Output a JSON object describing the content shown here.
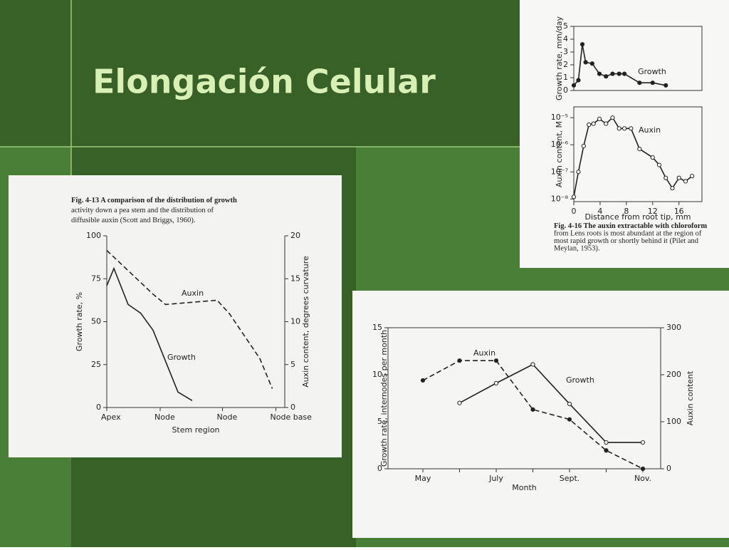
{
  "slide": {
    "title": "Elongación Celular"
  },
  "chart_data": [
    {
      "type": "line",
      "caption": [
        "Fig. 4-13  A comparison of the distribution of growth",
        "activity down a pea stem and the distribution of",
        "diffusible auxin (Scott and Briggs, 1960)."
      ],
      "xlabel": "Stem region",
      "ylabel": "Growth rate, %",
      "y2label": "Auxin content, degrees curvature",
      "xlim": [
        0,
        10
      ],
      "xticks": [
        {
          "value": 0,
          "label": "Apex"
        },
        {
          "value": 3,
          "label": "Node"
        },
        {
          "value": 6.5,
          "label": "Node"
        },
        {
          "value": 9.5,
          "label": "Node base"
        }
      ],
      "ylim": [
        0,
        100
      ],
      "yticks": [
        0,
        25,
        50,
        75,
        100
      ],
      "y2lim": [
        0,
        20
      ],
      "y2ticks": [
        0,
        5,
        10,
        15,
        20
      ],
      "series": [
        {
          "name": "Growth",
          "color": "#222222",
          "style": "solid",
          "x": [
            0,
            0.4,
            1.2,
            1.9,
            2.6,
            4,
            4.8
          ],
          "values": [
            71,
            81,
            60,
            55,
            45,
            9,
            4
          ]
        },
        {
          "name": "Auxin",
          "color": "#222222",
          "style": "dashed",
          "axis": "y2",
          "x": [
            0,
            2.6,
            3.3,
            6.2,
            6.9,
            8.6,
            9.3
          ],
          "values": [
            18.3,
            13.2,
            12,
            12.5,
            10.9,
            5.7,
            2.2
          ]
        }
      ]
    },
    {
      "type": "line",
      "ylabel": "Growth rate, mm/day",
      "xlim": [
        0,
        19.5
      ],
      "ylim": [
        0,
        5
      ],
      "yticks": [
        0,
        1,
        2,
        3,
        4,
        5
      ],
      "series": [
        {
          "name": "Growth",
          "color": "#222222",
          "style": "solid",
          "marker": "filled",
          "x": [
            0,
            0.7,
            1.3,
            1.8,
            2.8,
            3.9,
            4.9,
            5.9,
            6.9,
            7.7,
            10,
            12,
            14
          ],
          "values": [
            0.4,
            0.8,
            3.6,
            2.2,
            2.1,
            1.3,
            1.1,
            1.3,
            1.3,
            1.3,
            0.6,
            0.6,
            0.4
          ]
        }
      ]
    },
    {
      "type": "line",
      "caption": [
        "Fig. 4-16  The auxin extractable with chloroform",
        "from Lens roots is most abundant at the region of",
        "most rapid growth or shortly behind it (Pilet and",
        "Meylan, 1953)."
      ],
      "xlabel": "Distance from root tip, mm",
      "ylabel": "Auxin content, M",
      "ylog": true,
      "xlim": [
        0,
        19.5
      ],
      "xticks": [
        0,
        4,
        8,
        12,
        16
      ],
      "ylim": [
        8e-09,
        2.5e-05
      ],
      "yticks": [
        {
          "value": 1e-08,
          "label": "10⁻⁸"
        },
        {
          "value": 1e-07,
          "label": "10⁻⁷"
        },
        {
          "value": 1e-06,
          "label": "10⁻⁶"
        },
        {
          "value": 1e-05,
          "label": "10⁻⁵"
        }
      ],
      "series": [
        {
          "name": "Auxin",
          "color": "#222222",
          "style": "solid",
          "marker": "open",
          "x": [
            0,
            0.7,
            1.5,
            2.3,
            3,
            3.9,
            4.9,
            5.9,
            6.9,
            7.7,
            8.7,
            10,
            12,
            13,
            14,
            15,
            16,
            17,
            18
          ],
          "values": [
            1.2e-08,
            1e-07,
            9e-07,
            5.5e-06,
            6e-06,
            9e-06,
            6e-06,
            1e-05,
            4e-06,
            4e-06,
            4e-06,
            7e-07,
            3.4e-07,
            1.8e-07,
            6e-08,
            2.5e-08,
            6e-08,
            4.5e-08,
            7e-08
          ]
        }
      ]
    },
    {
      "type": "line",
      "xlabel": "Month",
      "ylabel": "Growth rate, internodes per month",
      "y2label": "Auxin content",
      "categories": [
        "May",
        null,
        "July",
        null,
        "Sept.",
        null,
        "Nov."
      ],
      "ylim": [
        0,
        15
      ],
      "yticks": [
        0,
        5,
        10,
        15
      ],
      "y2lim": [
        0,
        300
      ],
      "y2ticks": [
        0,
        100,
        200,
        300
      ],
      "series": [
        {
          "name": "Auxin",
          "color": "#222222",
          "style": "dashed",
          "marker": "filled",
          "axis": "y2",
          "values": [
            188,
            230,
            230,
            126,
            105,
            39,
            0
          ]
        },
        {
          "name": "Growth",
          "color": "#222222",
          "style": "solid",
          "marker": "open",
          "values": [
            null,
            7,
            9.1,
            11.1,
            6.9,
            2.8,
            2.8
          ]
        }
      ]
    }
  ]
}
